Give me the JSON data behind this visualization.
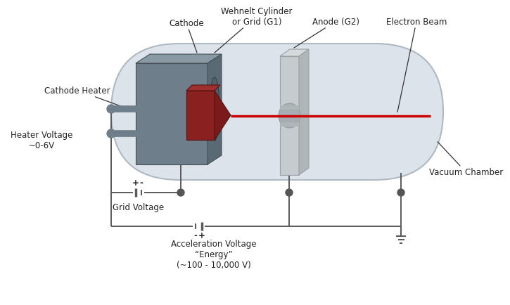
{
  "bg_color": "#ffffff",
  "labels": {
    "cathode": "Cathode",
    "cathode_heater": "Cathode Heater",
    "wehnelt": "Wehnelt Cylinder\nor Grid (G1)",
    "anode": "Anode (G2)",
    "electron_beam": "Electron Beam",
    "heater_voltage": "Heater Voltage\n~0-6V",
    "grid_voltage": "Grid Voltage",
    "accel_voltage": "Acceleration Voltage\n“Energy”\n(~100 - 10,000 V)",
    "vacuum_chamber": "Vacuum Chamber"
  },
  "colors": {
    "chamber_fill": "#dce3ea",
    "chamber_edge": "#b0b8c0",
    "wehnelt_front": "#6e7e8a",
    "wehnelt_top": "#8a9aa5",
    "wehnelt_right": "#5a6a75",
    "wehnelt_inner": "#555f68",
    "cathode_body": "#8b2020",
    "cathode_top": "#a03030",
    "cathode_tip": "#7a1a1a",
    "anode_fill": "#c5cbcf",
    "anode_edge": "#9aa0a5",
    "anode_groove": "#b0b5b8",
    "heater_rod": "#6e7e8a",
    "wire": "#5a5a5a",
    "beam": "#cc0000",
    "text": "#222222",
    "terminal_ball": "#555555",
    "battery_line": "#5a5a5a"
  }
}
